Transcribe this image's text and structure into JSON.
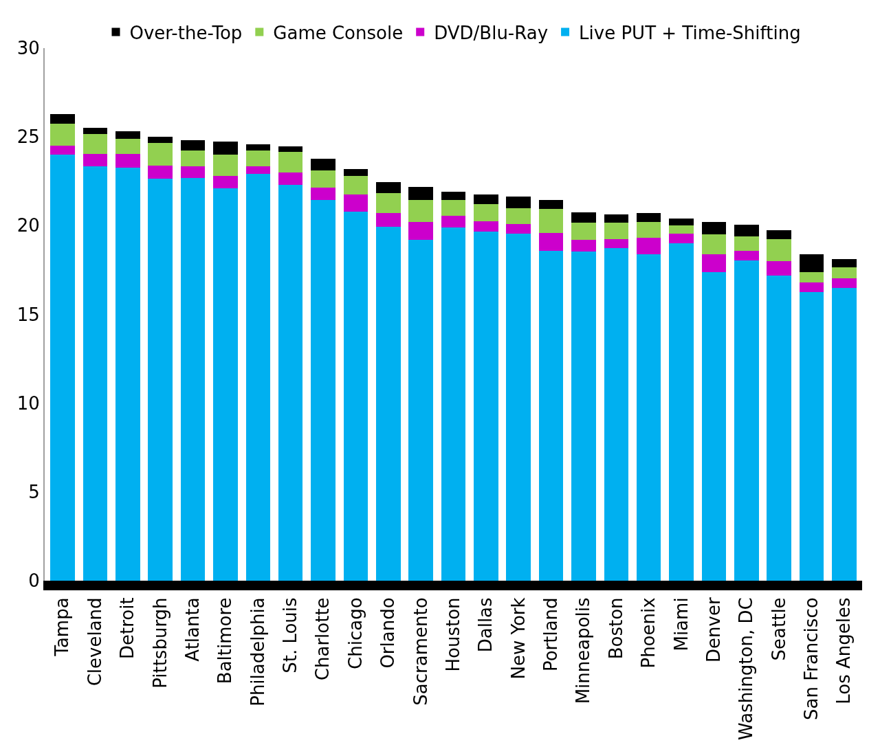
{
  "chart_data": {
    "type": "bar",
    "stacked": true,
    "categories": [
      "Tampa",
      "Cleveland",
      "Detroit",
      "Pittsburgh",
      "Atlanta",
      "Baltimore",
      "Philadelphia",
      "St. Louis",
      "Charlotte",
      "Chicago",
      "Orlando",
      "Sacramento",
      "Houston",
      "Dallas",
      "New York",
      "Portland",
      "Minneapolis",
      "Boston",
      "Phoenix",
      "Miami",
      "Denver",
      "Washington, DC",
      "Seattle",
      "San Francisco",
      "Los Angeles"
    ],
    "series": [
      {
        "name": "Live PUT + Time-Shifting",
        "color": "#00b0f0",
        "values": [
          24.0,
          23.35,
          23.25,
          22.65,
          22.7,
          22.1,
          22.9,
          22.3,
          21.45,
          20.8,
          19.95,
          19.2,
          19.9,
          19.65,
          19.55,
          18.6,
          18.55,
          18.75,
          18.4,
          19.0,
          17.4,
          18.05,
          17.2,
          16.25,
          16.5
        ]
      },
      {
        "name": "DVD/Blu-Ray",
        "color": "#cc00cc",
        "values": [
          0.5,
          0.7,
          0.8,
          0.75,
          0.65,
          0.7,
          0.45,
          0.7,
          0.7,
          0.95,
          0.75,
          1.0,
          0.65,
          0.6,
          0.55,
          1.0,
          0.65,
          0.5,
          0.9,
          0.55,
          1.0,
          0.55,
          0.8,
          0.55,
          0.55
        ]
      },
      {
        "name": "Game Console",
        "color": "#92d050",
        "values": [
          1.25,
          1.1,
          0.85,
          1.25,
          0.9,
          1.2,
          0.9,
          1.15,
          0.95,
          1.05,
          1.15,
          1.25,
          0.9,
          0.95,
          0.9,
          1.35,
          0.95,
          0.9,
          0.9,
          0.45,
          1.1,
          0.8,
          1.25,
          0.6,
          0.6
        ]
      },
      {
        "name": "Over-the-Top",
        "color": "#000000",
        "values": [
          0.55,
          0.35,
          0.4,
          0.35,
          0.55,
          0.75,
          0.35,
          0.3,
          0.65,
          0.4,
          0.6,
          0.75,
          0.45,
          0.55,
          0.65,
          0.5,
          0.6,
          0.5,
          0.5,
          0.4,
          0.7,
          0.65,
          0.5,
          1.0,
          0.45
        ]
      }
    ],
    "ylim": [
      0,
      30
    ],
    "yticks": [
      0,
      5,
      10,
      15,
      20,
      25,
      30
    ],
    "legend": "top"
  }
}
